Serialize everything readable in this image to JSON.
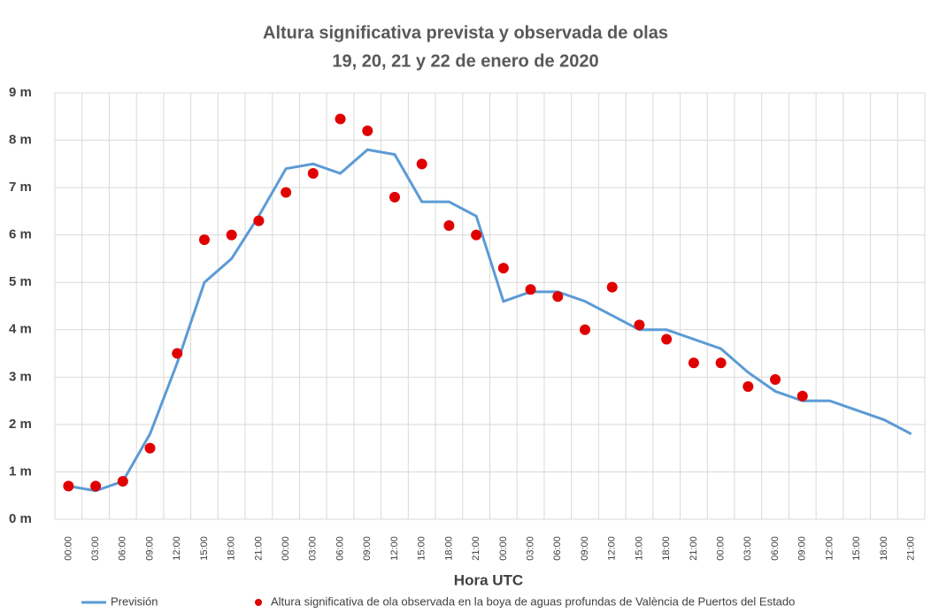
{
  "chart_data": {
    "type": "line",
    "title": "Altura significativa prevista y observada de olas",
    "subtitle": "19, 20, 21 y 22 de enero de 2020",
    "x_label": "Hora UTC",
    "categories": [
      "00:00",
      "03:00",
      "06:00",
      "09:00",
      "12:00",
      "15:00",
      "18:00",
      "21:00",
      "00:00",
      "03:00",
      "06:00",
      "09:00",
      "12:00",
      "15:00",
      "18:00",
      "21:00",
      "00:00",
      "03:00",
      "06:00",
      "09:00",
      "12:00",
      "15:00",
      "18:00",
      "21:00",
      "00:00",
      "03:00",
      "06:00",
      "09:00",
      "12:00",
      "15:00",
      "18:00",
      "21:00"
    ],
    "series": [
      {
        "name": "Previsión",
        "color": "#5b9bd5",
        "mode": "line",
        "values": [
          0.7,
          0.6,
          0.8,
          1.8,
          3.3,
          5.0,
          5.5,
          6.4,
          7.4,
          7.5,
          7.3,
          7.8,
          7.7,
          6.7,
          6.7,
          6.4,
          4.6,
          4.8,
          4.8,
          4.6,
          4.3,
          4.0,
          4.0,
          3.8,
          3.6,
          3.1,
          2.7,
          2.5,
          2.5,
          2.3,
          2.1,
          1.8
        ]
      },
      {
        "name": "Altura significativa de ola observada en la boya de aguas profundas de València de Puertos del Estado",
        "color": "#e00000",
        "mode": "markers",
        "values": [
          0.7,
          0.7,
          0.8,
          1.5,
          3.5,
          5.9,
          6.0,
          6.3,
          6.9,
          7.3,
          8.45,
          8.2,
          6.8,
          7.5,
          6.2,
          6.0,
          5.3,
          4.85,
          4.7,
          4.0,
          4.9,
          4.1,
          3.8,
          3.3,
          3.3,
          2.8,
          2.95,
          2.6,
          null,
          null,
          null,
          null
        ]
      }
    ],
    "ylim": [
      0,
      9
    ],
    "yticks": [
      {
        "value": 0,
        "label": "0 m"
      },
      {
        "value": 1,
        "label": "1 m"
      },
      {
        "value": 2,
        "label": "2 m"
      },
      {
        "value": 3,
        "label": "3 m"
      },
      {
        "value": 4,
        "label": "4 m"
      },
      {
        "value": 5,
        "label": "5 m"
      },
      {
        "value": 6,
        "label": "6 m"
      },
      {
        "value": 7,
        "label": "7 m"
      },
      {
        "value": 8,
        "label": "8 m"
      },
      {
        "value": 9,
        "label": "9 m"
      }
    ],
    "grid": true,
    "legend": "bottom"
  }
}
